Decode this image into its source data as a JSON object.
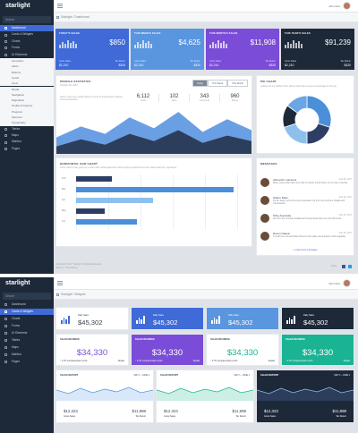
{
  "app": {
    "name": "starlight"
  },
  "user": {
    "name": "John Doe"
  },
  "s1": {
    "search_placeholder": "Search",
    "breadcrumb": {
      "root": "Starlight",
      "current": "Dashboard"
    },
    "sidebar": [
      {
        "label": "Dashboard"
      },
      {
        "label": "Cards & Widgets"
      },
      {
        "label": "Charts"
      },
      {
        "label": "Forms"
      },
      {
        "label": "UI Elements"
      }
    ],
    "submenu": [
      "Accordion",
      "Alerts",
      "Buttons",
      "Cards",
      "Icons",
      "Modal",
      "Navigation",
      "Pagination",
      "Tooltip & Popover",
      "Progress",
      "Spinners",
      "Typography"
    ],
    "sidebar_after": [
      {
        "label": "Tables"
      },
      {
        "label": "Maps"
      },
      {
        "label": "Mailbox"
      },
      {
        "label": "Pages"
      }
    ],
    "tiles": [
      {
        "title": "TODAY'S SALES",
        "value": "$850",
        "left_label": "Gross Sales",
        "left_value": "$2,210",
        "right_label": "Tax Return",
        "right_value": "$320"
      },
      {
        "title": "THIS WEEK'S SALES",
        "value": "$4,625",
        "left_label": "Gross Sales",
        "left_value": "$2,210",
        "right_label": "Tax Return",
        "right_value": "$320"
      },
      {
        "title": "THIS MONTH'S SALES",
        "value": "$11,908",
        "left_label": "Gross Sales",
        "left_value": "$2,210",
        "right_label": "Tax Return",
        "right_value": "$320"
      },
      {
        "title": "THIS YEAR'S SALES",
        "value": "$91,239",
        "left_label": "Gross Sales",
        "left_value": "$2,210",
        "right_label": "Tax Return",
        "right_value": "$320"
      }
    ],
    "profile": {
      "title": "PROFILE STATISTICS",
      "date": "October 23, 2017",
      "desc": "Here's how your profile looks in terms of Impressions, Reach and Conversions.",
      "tabs": [
        "Today",
        "This Week",
        "This Month"
      ],
      "stats": [
        {
          "value": "6,112",
          "label": "Views"
        },
        {
          "value": "102",
          "label": "Likes"
        },
        {
          "value": "343",
          "label": "Comments"
        },
        {
          "value": "960",
          "label": "Shares"
        }
      ]
    },
    "pie": {
      "title": "PIE CHART",
      "desc": "Labels can be hidden if the slice is less than a given percentage of the pie."
    },
    "hbar": {
      "title": "HORIZONTAL BAR CHART",
      "desc": "A bar chart or bar graph is a chart with rectangular bars with lengths proportional to the values that they represent.",
      "categories": [
        "Feb",
        "Mar",
        "Apr",
        "May",
        "Jun"
      ],
      "values": [
        22,
        98,
        48,
        18,
        38
      ],
      "colors": [
        "#2c3e63",
        "#4a8fd8",
        "#8ec0ee",
        "#2c3e63",
        "#4a8fd8"
      ]
    },
    "messages": {
      "title": "MESSAGES",
      "items": [
        {
          "name": "Ahmad R. Larrazod",
          "date": "Feb 23, 2017",
          "body": "Many, many other plain ones that in a fertile mouth when you so have a feeling"
        },
        {
          "name": "Isidore Dilao",
          "date": "Feb 24, 2017",
          "body": "Far far away, behind the word mountains, far from the countries Vokalia and Consonantia"
        },
        {
          "name": "Kirby Avendula",
          "date": "Feb 25, 2017",
          "body": "Far from the countries Vokalia and Consonantia there live the blind texts"
        },
        {
          "name": "Roven Galeon",
          "date": "Feb 26, 2017",
          "body": "A small river named Duden flows by their place and supplies it with regelialia"
        }
      ],
      "load_more": "+ Load more messages"
    },
    "footer": {
      "line1": "Copyright © 2017. Starlight. All Rights Reserved.",
      "line2": "Made by: ThemePixels",
      "share": "Share:"
    }
  },
  "s2": {
    "search_placeholder": "Search",
    "breadcrumb": {
      "root": "Starlight",
      "current": "Widgets"
    },
    "sidebar": [
      {
        "label": "Dashboard"
      },
      {
        "label": "Cards & Widgets"
      },
      {
        "label": "Charts"
      },
      {
        "label": "Forms"
      },
      {
        "label": "UI Elements"
      },
      {
        "label": "Tables"
      },
      {
        "label": "Maps"
      },
      {
        "label": "Mailbox"
      },
      {
        "label": "Pages"
      }
    ],
    "stat_tiles": [
      {
        "label": "Daily Sales",
        "value": "$45,302"
      },
      {
        "label": "Daily Sales",
        "value": "$45,302"
      },
      {
        "label": "Daily Sales",
        "value": "$45,302"
      },
      {
        "label": "Daily Sales",
        "value": "$45,302"
      }
    ],
    "revenue": [
      {
        "title": "SALES REVENUE",
        "value": "$34,330",
        "left": "↑ 2.7% compared last month",
        "right": "Details"
      },
      {
        "title": "SALES REVENUE",
        "value": "$34,330",
        "left": "↑ 2.7% compared last month",
        "right": "Details"
      },
      {
        "title": "SALES REVENUE",
        "value": "$34,330",
        "left": "↑ 2.7% compared last month",
        "right": "Details"
      },
      {
        "title": "SALES REVENUE",
        "value": "$34,330",
        "left": "↑ 2.7% compared last month",
        "right": "Details"
      }
    ],
    "reports": [
      {
        "title": "SALES REPORT",
        "range": "MAY 1 - JUNE 1",
        "a": "$12,323",
        "a_label": "Gross Sales",
        "b": "$11,998",
        "b_label": "Tax Return"
      },
      {
        "title": "SALES REPORT",
        "range": "MAY 1 - JUNE 1",
        "a": "$12,323",
        "a_label": "Gross Sales",
        "b": "$11,998",
        "b_label": "Tax Return"
      },
      {
        "title": "SALES REPORT",
        "range": "MAY 1 - JUNE 1",
        "a": "$12,323",
        "a_label": "Gross Sales",
        "b": "$11,998",
        "b_label": "Tax Return"
      }
    ]
  },
  "chart_data": [
    {
      "type": "area",
      "title": "PROFILE STATISTICS",
      "series": [
        {
          "values": [
            18,
            30,
            22,
            40,
            28,
            46,
            24,
            38,
            26
          ]
        },
        {
          "values": [
            8,
            16,
            10,
            22,
            14,
            26,
            12,
            20,
            14
          ]
        }
      ]
    },
    {
      "type": "pie",
      "title": "PIE CHART",
      "values": [
        30,
        20,
        20,
        15,
        15
      ],
      "colors": [
        "#4a8fd8",
        "#2c3e63",
        "#8ec0ee",
        "#1d2939",
        "#6aa6e6"
      ]
    },
    {
      "type": "bar",
      "title": "HORIZONTAL BAR CHART",
      "categories": [
        "Feb",
        "Mar",
        "Apr",
        "May",
        "Jun"
      ],
      "values": [
        22,
        98,
        48,
        18,
        38
      ]
    }
  ],
  "colors": {
    "blue": "#3f6ad8",
    "teal": "#1ab394",
    "dark": "#1d2939",
    "purple": "#7b4cd8",
    "light_blue": "#5a95df"
  }
}
